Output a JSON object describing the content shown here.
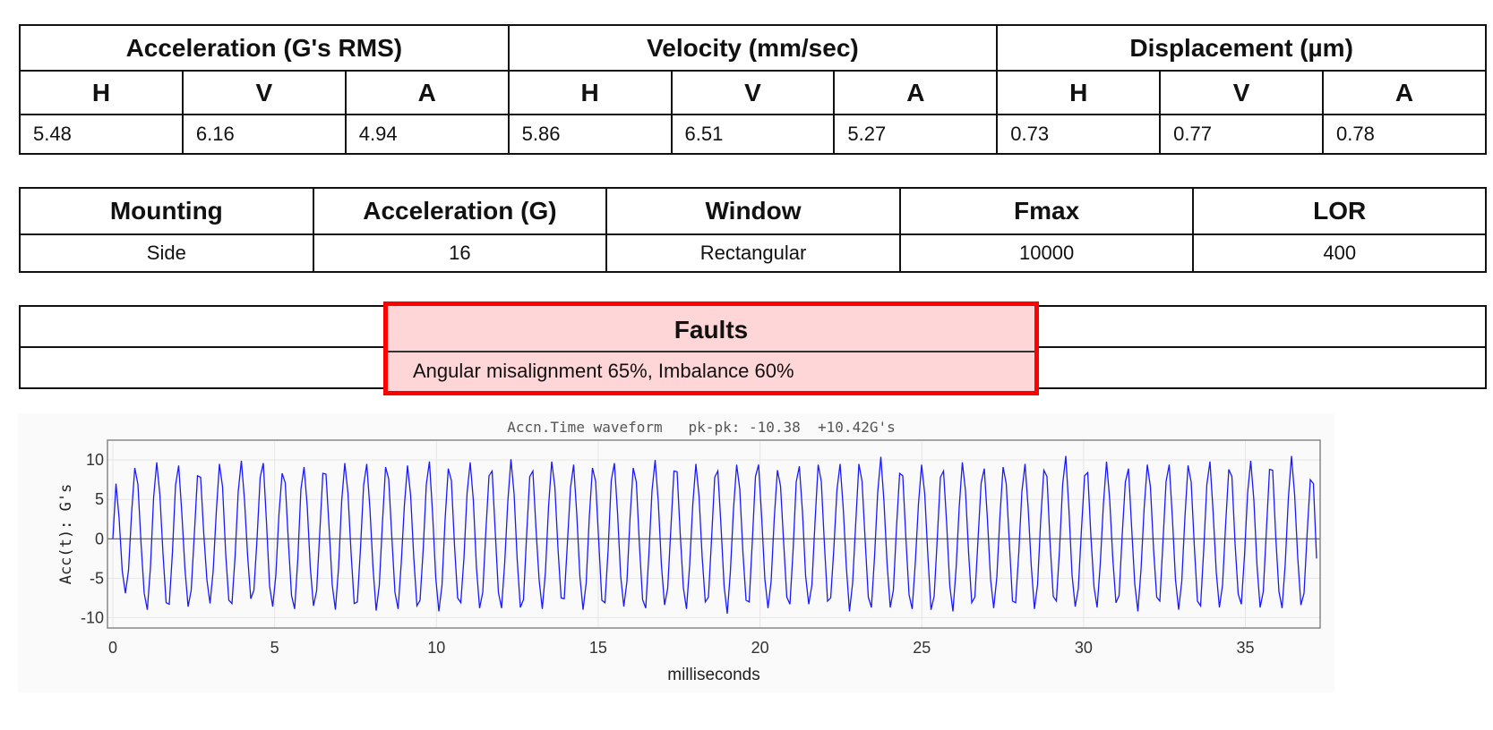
{
  "rms": {
    "groups": [
      "Acceleration (G's RMS)",
      "Velocity (mm/sec)",
      "Displacement (µm)"
    ],
    "axes": [
      "H",
      "V",
      "A",
      "H",
      "V",
      "A",
      "H",
      "V",
      "A"
    ],
    "values": [
      "5.48",
      "6.16",
      "4.94",
      "5.86",
      "6.51",
      "5.27",
      "0.73",
      "0.77",
      "0.78"
    ]
  },
  "settings": {
    "headers": [
      "Mounting",
      "Acceleration (G)",
      "Window",
      "Fmax",
      "LOR"
    ],
    "values": [
      "Side",
      "16",
      "Rectangular",
      "10000",
      "400"
    ]
  },
  "faults": {
    "title": "Faults",
    "text": "Angular misalignment 65%, Imbalance 60%",
    "highlight_color": "#ff0000",
    "highlight_fill": "#ffd6d8"
  },
  "chart_data": {
    "type": "line",
    "title": "Accn.Time waveform   pk-pk: -10.38  +10.42G's",
    "xlabel": "milliseconds",
    "ylabel": "Acc(t): G's",
    "xlim": [
      0,
      37.2
    ],
    "ylim": [
      -11.2,
      12.4
    ],
    "x_ticks": [
      0,
      5,
      10,
      15,
      20,
      25,
      30,
      35
    ],
    "y_ticks": [
      10,
      5,
      0,
      -5,
      -10
    ],
    "line_color": "#1a1aff",
    "grid": true,
    "series": [
      {
        "values": [
          0.0,
          7.0,
          2.6,
          -4.1,
          -6.9,
          -4.0,
          3.4,
          9.0,
          6.9,
          -0.6,
          -6.9,
          -9.0,
          -3.6,
          5.2,
          9.7,
          5.6,
          -1.9,
          -8.1,
          -8.3,
          -1.8,
          6.8,
          9.3,
          3.3,
          -3.8,
          -8.6,
          -6.5,
          0.6,
          8.0,
          7.8,
          0.7,
          -5.2,
          -8.2,
          -4.1,
          3.4,
          9.5,
          6.6,
          -1.9,
          -7.8,
          -8.2,
          -2.2,
          6.0,
          9.9,
          4.9,
          -2.2,
          -7.6,
          -6.5,
          0.0,
          7.8,
          9.6,
          2.2,
          -6.0,
          -8.6,
          -4.6,
          3.2,
          8.3,
          7.1,
          -0.4,
          -7.2,
          -8.9,
          -2.6,
          6.3,
          9.1,
          4.2,
          -3.7,
          -8.5,
          -6.6,
          0.7,
          8.3,
          8.2,
          1.3,
          -5.9,
          -9.0,
          -3.7,
          4.8,
          9.6,
          5.8,
          -1.8,
          -8.2,
          -8.0,
          -1.2,
          6.8,
          9.5,
          3.9,
          -3.7,
          -9.1,
          -5.9,
          2.0,
          9.1,
          7.6,
          0.2,
          -6.8,
          -8.9,
          -3.1,
          4.2,
          9.3,
          5.5,
          -2.4,
          -8.5,
          -7.8,
          -1.4,
          6.9,
          9.8,
          3.2,
          -4.9,
          -9.2,
          -5.9,
          2.5,
          8.9,
          7.4,
          -0.9,
          -7.5,
          -8.1,
          -2.5,
          5.8,
          9.7,
          4.9,
          -3.7,
          -8.8,
          -6.8,
          1.0,
          8.0,
          8.6,
          0.8,
          -6.8,
          -8.8,
          -3.1,
          4.7,
          10.1,
          5.7,
          -2.7,
          -8.7,
          -7.7,
          0.5,
          7.9,
          8.6,
          1.2,
          -5.3,
          -8.9,
          -4.2,
          4.1,
          9.8,
          6.6,
          -1.2,
          -7.5,
          -7.6,
          -0.6,
          6.5,
          9.4,
          3.1,
          -4.8,
          -9.0,
          -5.6,
          2.8,
          9.0,
          7.3,
          -0.3,
          -7.8,
          -8.1,
          -1.4,
          7.4,
          9.6,
          3.3,
          -4.7,
          -8.6,
          -5.4,
          2.7,
          9.0,
          7.2,
          -0.9,
          -7.7,
          -8.8,
          -2.0,
          6.1,
          10.0,
          4.7,
          -3.3,
          -8.4,
          -6.3,
          1.2,
          8.6,
          8.5,
          0.6,
          -6.2,
          -8.9,
          -3.4,
          4.3,
          9.5,
          5.4,
          -2.3,
          -8.0,
          -7.4,
          0.0,
          7.8,
          8.6,
          1.7,
          -6.0,
          -9.5,
          -4.2,
          3.8,
          9.4,
          6.3,
          -1.7,
          -7.8,
          -8.0,
          -0.3,
          7.9,
          9.4,
          2.6,
          -5.1,
          -8.8,
          -5.4,
          2.6,
          8.7,
          6.7,
          -0.5,
          -7.4,
          -8.3,
          -1.5,
          7.2,
          9.2,
          3.4,
          -4.7,
          -8.3,
          -5.9,
          2.1,
          9.4,
          7.3,
          -0.7,
          -7.9,
          -7.5,
          -1.3,
          6.2,
          9.5,
          3.9,
          -3.6,
          -9.2,
          -5.6,
          2.1,
          9.5,
          7.3,
          -0.2,
          -7.4,
          -8.7,
          -2.2,
          5.9,
          10.4,
          4.7,
          -3.2,
          -8.7,
          -6.5,
          1.5,
          8.3,
          8.0,
          0.0,
          -7.1,
          -8.9,
          -3.0,
          4.4,
          9.4,
          5.7,
          -2.1,
          -9.0,
          -7.3,
          0.0,
          7.8,
          8.6,
          1.9,
          -6.0,
          -9.2,
          -3.8,
          4.0,
          9.7,
          6.1,
          -1.8,
          -8.1,
          -7.4,
          -0.1,
          7.1,
          8.9,
          2.5,
          -5.1,
          -8.8,
          -4.9,
          2.9,
          9.1,
          7.0,
          -0.5,
          -7.9,
          -8.1,
          -1.8,
          6.0,
          9.5,
          3.9,
          -3.5,
          -8.9,
          -5.8,
          2.4,
          8.7,
          7.9,
          -0.6,
          -7.3,
          -7.9,
          -1.4,
          6.9,
          10.5,
          3.7,
          -4.6,
          -8.6,
          -6.3,
          1.2,
          8.0,
          8.4,
          0.4,
          -6.1,
          -8.7,
          -3.2,
          4.4,
          9.8,
          5.0,
          -2.5,
          -8.1,
          -7.2,
          0.5,
          7.2,
          8.9,
          1.5,
          -5.7,
          -9.2,
          -3.9,
          3.9,
          9.4,
          6.6,
          -1.3,
          -7.4,
          -7.9,
          -0.4,
          7.3,
          9.4,
          2.7,
          -5.2,
          -9.0,
          -5.4,
          2.7,
          9.3,
          7.2,
          -0.9,
          -7.9,
          -8.5,
          -1.4,
          6.9,
          9.8,
          3.4,
          -4.2,
          -8.7,
          -5.9,
          1.9,
          8.8,
          7.9,
          -0.6,
          -7.0,
          -8.3,
          -2.2,
          5.8,
          9.9,
          4.9,
          -3.4,
          -8.7,
          -6.7,
          1.1,
          8.8,
          8.7,
          0.1,
          -6.7,
          -8.8,
          -3.2,
          5.1,
          10.5,
          5.6,
          -2.4,
          -8.4,
          -6.9,
          0.7,
          7.5,
          7.0,
          -2.5
        ]
      }
    ]
  }
}
